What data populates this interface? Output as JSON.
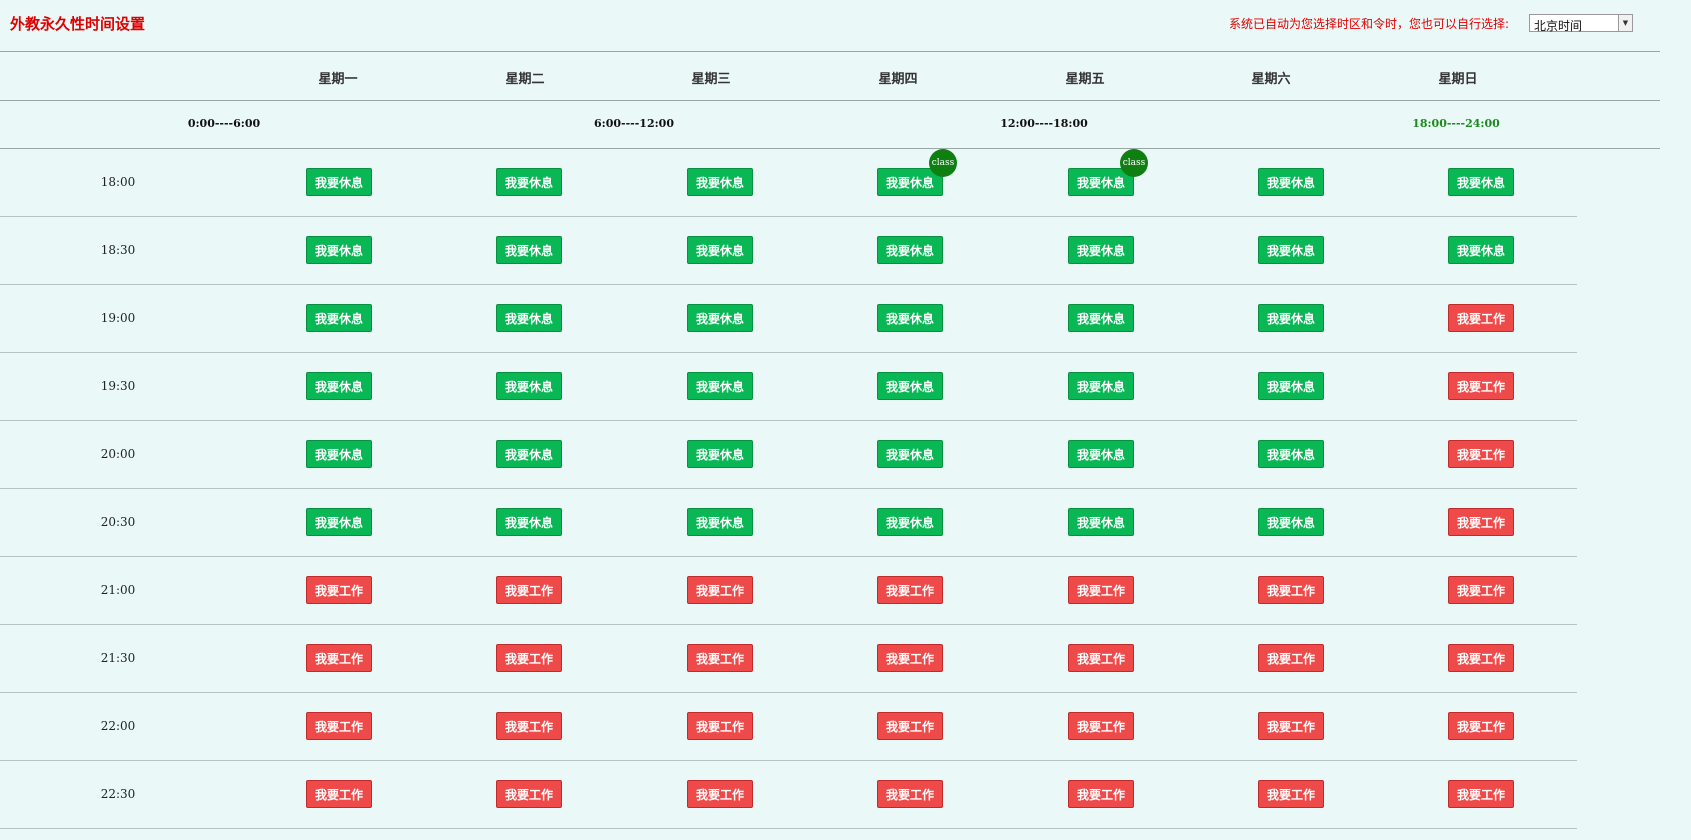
{
  "header": {
    "title": "外教永久性时间设置",
    "tz_note": "系统已自动为您选择时区和令时，您也可以自行选择:",
    "tz_select_value": "北京时间"
  },
  "days": [
    "星期一",
    "星期二",
    "星期三",
    "星期四",
    "星期五",
    "星期六",
    "星期日"
  ],
  "ranges": [
    {
      "label": "0:00----6:00",
      "active": false
    },
    {
      "label": "6:00----12:00",
      "active": false
    },
    {
      "label": "12:00----18:00",
      "active": false
    },
    {
      "label": "18:00----24:00",
      "active": true
    }
  ],
  "labels": {
    "rest": "我要休息",
    "work": "我要工作",
    "class_badge": "class"
  },
  "colors": {
    "rest": "#09b755",
    "work": "#ee4a4a",
    "badge": "#0f7f12",
    "title": "#e00000",
    "active_range": "#1d8a1d"
  },
  "slots": [
    {
      "time": "18:00",
      "states": [
        "rest",
        "rest",
        "rest",
        "rest",
        "rest",
        "rest",
        "rest"
      ],
      "badges": [
        false,
        false,
        false,
        true,
        true,
        false,
        false
      ]
    },
    {
      "time": "18:30",
      "states": [
        "rest",
        "rest",
        "rest",
        "rest",
        "rest",
        "rest",
        "rest"
      ],
      "badges": [
        false,
        false,
        false,
        false,
        false,
        false,
        false
      ]
    },
    {
      "time": "19:00",
      "states": [
        "rest",
        "rest",
        "rest",
        "rest",
        "rest",
        "rest",
        "work"
      ],
      "badges": [
        false,
        false,
        false,
        false,
        false,
        false,
        false
      ]
    },
    {
      "time": "19:30",
      "states": [
        "rest",
        "rest",
        "rest",
        "rest",
        "rest",
        "rest",
        "work"
      ],
      "badges": [
        false,
        false,
        false,
        false,
        false,
        false,
        false
      ]
    },
    {
      "time": "20:00",
      "states": [
        "rest",
        "rest",
        "rest",
        "rest",
        "rest",
        "rest",
        "work"
      ],
      "badges": [
        false,
        false,
        false,
        false,
        false,
        false,
        false
      ]
    },
    {
      "time": "20:30",
      "states": [
        "rest",
        "rest",
        "rest",
        "rest",
        "rest",
        "rest",
        "work"
      ],
      "badges": [
        false,
        false,
        false,
        false,
        false,
        false,
        false
      ]
    },
    {
      "time": "21:00",
      "states": [
        "work",
        "work",
        "work",
        "work",
        "work",
        "work",
        "work"
      ],
      "badges": [
        false,
        false,
        false,
        false,
        false,
        false,
        false
      ]
    },
    {
      "time": "21:30",
      "states": [
        "work",
        "work",
        "work",
        "work",
        "work",
        "work",
        "work"
      ],
      "badges": [
        false,
        false,
        false,
        false,
        false,
        false,
        false
      ]
    },
    {
      "time": "22:00",
      "states": [
        "work",
        "work",
        "work",
        "work",
        "work",
        "work",
        "work"
      ],
      "badges": [
        false,
        false,
        false,
        false,
        false,
        false,
        false
      ]
    },
    {
      "time": "22:30",
      "states": [
        "work",
        "work",
        "work",
        "work",
        "work",
        "work",
        "work"
      ],
      "badges": [
        false,
        false,
        false,
        false,
        false,
        false,
        false
      ]
    }
  ]
}
